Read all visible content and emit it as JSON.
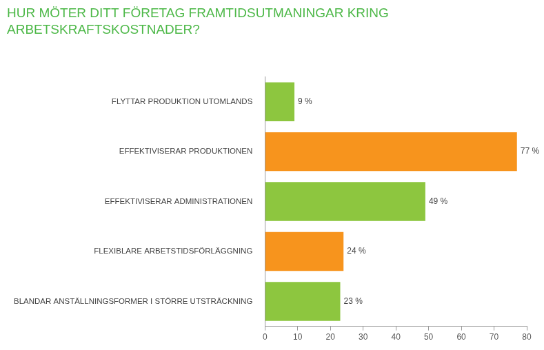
{
  "chart_data": {
    "type": "bar",
    "orientation": "horizontal",
    "title": [
      "HUR MÖTER DITT FÖRETAG FRAMTIDSUTMANINGAR KRING",
      "ARBETSKRAFTSKOSTNADER?"
    ],
    "categories": [
      "FLYTTAR PRODUKTION UTOMLANDS",
      "EFFEKTIVISERAR PRODUKTIONEN",
      "EFFEKTIVISERAR ADMINISTRATIONEN",
      "FLEXIBLARE ARBETSTIDSFÖRLÄGGNING",
      "BLANDAR ANSTÄLLNINGSFORMER I STÖRRE UTSTRÄCKNING"
    ],
    "values": [
      9,
      77,
      49,
      24,
      23
    ],
    "value_labels": [
      "9 %",
      "77 %",
      "49 %",
      "24 %",
      "23 %"
    ],
    "colors": [
      "#8dc63f",
      "#f7941d",
      "#8dc63f",
      "#f7941d",
      "#8dc63f"
    ],
    "xlim": [
      0,
      80
    ],
    "xticks": [
      0,
      10,
      20,
      30,
      40,
      50,
      60,
      70,
      80
    ],
    "grid": false,
    "data_labels": true
  }
}
